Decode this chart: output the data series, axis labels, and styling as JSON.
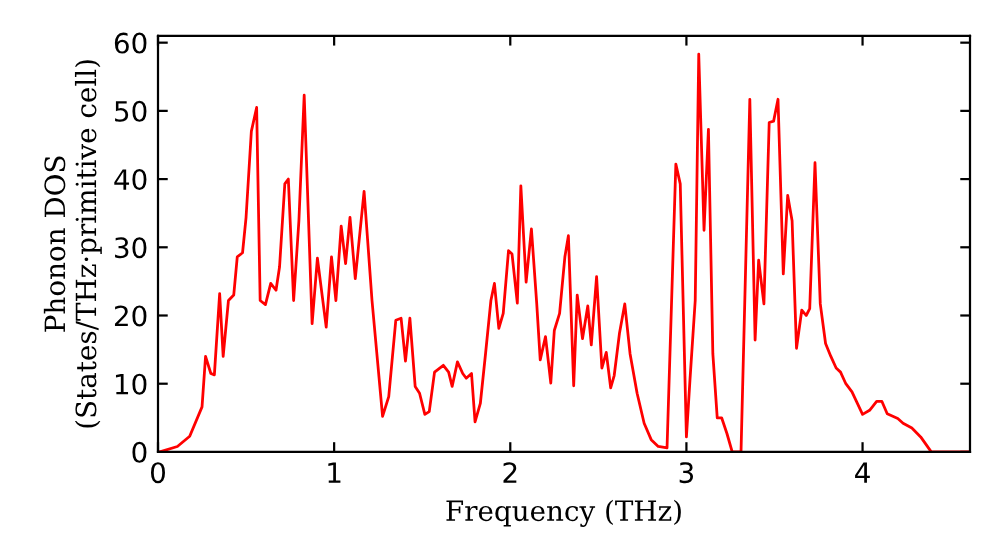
{
  "chart_data": {
    "type": "line",
    "xlabel": "Frequency (THz)",
    "ylabel": "Phonon DOS\n(States/THz·primitive cell)",
    "xlim": [
      0,
      4.61
    ],
    "ylim": [
      0,
      61
    ],
    "xticks": [
      0,
      1,
      2,
      3,
      4
    ],
    "yticks": [
      0,
      10,
      20,
      30,
      40,
      50,
      60
    ],
    "grid": false,
    "marker": "none",
    "line_style": "solid",
    "series": [
      {
        "color": "#ff0000",
        "x": [
          0.01,
          0.11,
          0.18,
          0.25,
          0.27,
          0.3,
          0.32,
          0.35,
          0.37,
          0.4,
          0.43,
          0.45,
          0.48,
          0.5,
          0.53,
          0.56,
          0.58,
          0.61,
          0.64,
          0.67,
          0.69,
          0.72,
          0.74,
          0.77,
          0.8,
          0.83,
          0.875,
          0.905,
          0.955,
          0.985,
          1.01,
          1.04,
          1.065,
          1.09,
          1.12,
          1.17,
          1.215,
          1.275,
          1.31,
          1.35,
          1.38,
          1.405,
          1.43,
          1.46,
          1.485,
          1.515,
          1.54,
          1.57,
          1.62,
          1.65,
          1.67,
          1.7,
          1.73,
          1.75,
          1.78,
          1.8,
          1.83,
          1.86,
          1.89,
          1.91,
          1.935,
          1.96,
          1.99,
          2.01,
          2.04,
          2.06,
          2.09,
          2.12,
          2.15,
          2.17,
          2.2,
          2.23,
          2.25,
          2.28,
          2.31,
          2.33,
          2.36,
          2.38,
          2.41,
          2.44,
          2.46,
          2.49,
          2.52,
          2.545,
          2.57,
          2.59,
          2.62,
          2.65,
          2.68,
          2.72,
          2.76,
          2.8,
          2.84,
          2.89,
          2.94,
          2.965,
          3.0,
          3.02,
          3.05,
          3.07,
          3.1,
          3.125,
          3.15,
          3.175,
          3.2,
          3.23,
          3.26,
          3.31,
          3.36,
          3.39,
          3.41,
          3.44,
          3.47,
          3.495,
          3.52,
          3.55,
          3.575,
          3.6,
          3.625,
          3.655,
          3.68,
          3.7,
          3.73,
          3.76,
          3.79,
          3.82,
          3.85,
          3.875,
          3.905,
          3.94,
          4.0,
          4.04,
          4.08,
          4.11,
          4.14,
          4.2,
          4.23,
          4.28,
          4.33,
          4.39,
          4.61
        ],
        "values": [
          0,
          0.8,
          2.3,
          6.6,
          14,
          11.5,
          11.3,
          23.2,
          14,
          22.2,
          23,
          28.6,
          29.2,
          34.4,
          47,
          50.5,
          22.2,
          21.6,
          24.7,
          23.7,
          27.1,
          39.3,
          40,
          22.2,
          33.9,
          52.3,
          18.8,
          28.4,
          18.3,
          28.6,
          22.2,
          33.1,
          27.6,
          34.4,
          25.4,
          38.2,
          22.2,
          5.2,
          8.1,
          19.3,
          19.6,
          13.3,
          19.6,
          9.6,
          8.6,
          5.5,
          5.9,
          11.7,
          12.7,
          11.7,
          9.6,
          13.2,
          11.5,
          10.8,
          11.5,
          4.4,
          7.1,
          14.5,
          22.2,
          24.7,
          18.1,
          20.3,
          29.5,
          29.0,
          21.8,
          39.0,
          24.9,
          32.7,
          21.8,
          13.5,
          16.9,
          10.1,
          17.8,
          20.3,
          28.6,
          31.7,
          9.7,
          23,
          16.6,
          21.4,
          15.7,
          25.7,
          12.3,
          14.6,
          9.4,
          11.2,
          17.4,
          21.7,
          14.4,
          8.6,
          4.2,
          1.8,
          0.8,
          0.6,
          42.2,
          39.3,
          2.2,
          10.5,
          22.2,
          58.3,
          32.5,
          47.3,
          14.4,
          5,
          5,
          2.7,
          0,
          0,
          51.7,
          16.4,
          28.1,
          21.7,
          48.3,
          48.5,
          51.7,
          26.1,
          37.6,
          33.9,
          15.2,
          20.8,
          20,
          21,
          42.4,
          21.7,
          15.9,
          14,
          12.3,
          11.7,
          10,
          8.8,
          5.5,
          6.1,
          7.4,
          7.4,
          5.6,
          4.9,
          4.2,
          3.5,
          2.2,
          0,
          0
        ]
      }
    ]
  }
}
